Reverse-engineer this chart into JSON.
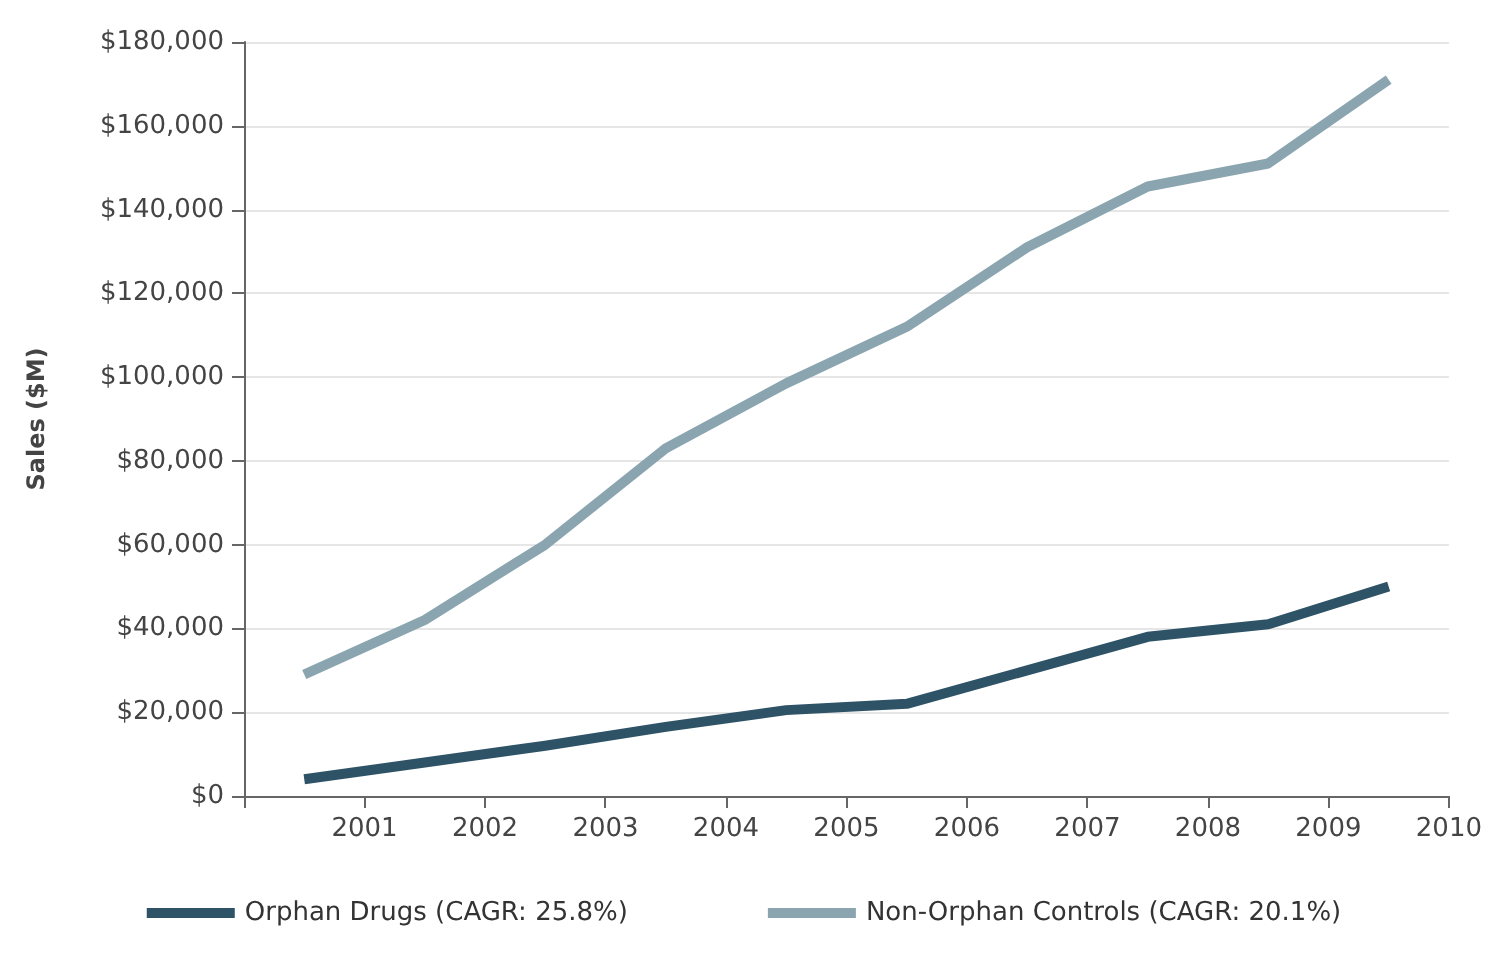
{
  "chart_data": {
    "type": "line",
    "ylabel": "Sales ($M)",
    "x": [
      2000.5,
      2001.5,
      2002.5,
      2003.5,
      2004.5,
      2005.5,
      2006.5,
      2007.5,
      2008.5,
      2009.5
    ],
    "series": [
      {
        "name": "Orphan Drugs (CAGR: 25.8%)",
        "color": "#2e5266",
        "values": [
          4000,
          8000,
          12000,
          16500,
          20500,
          22000,
          30000,
          38000,
          41000,
          50000
        ]
      },
      {
        "name": "Non-Orphan Controls (CAGR: 20.1%)",
        "color": "#8aa5b0",
        "values": [
          29000,
          42000,
          60000,
          83000,
          98500,
          112000,
          131000,
          145500,
          151000,
          171000
        ]
      }
    ],
    "xlim": [
      2000,
      2010
    ],
    "xticks": [
      {
        "value": 2000,
        "label": null
      },
      2001,
      2002,
      2003,
      2004,
      2005,
      2006,
      2007,
      2008,
      2009,
      2010
    ],
    "ylim": [
      0,
      180000
    ],
    "yticks": [
      {
        "value": 0,
        "label": "$0"
      },
      {
        "value": 20000,
        "label": "$20,000"
      },
      {
        "value": 40000,
        "label": "$40,000"
      },
      {
        "value": 60000,
        "label": "$60,000"
      },
      {
        "value": 80000,
        "label": "$80,000"
      },
      {
        "value": 100000,
        "label": "$100,000"
      },
      {
        "value": 120000,
        "label": "$120,000"
      },
      {
        "value": 140000,
        "label": "$140,000"
      },
      {
        "value": 160000,
        "label": "$160,000"
      },
      {
        "value": 180000,
        "label": "$180,000"
      }
    ],
    "grid": "y",
    "legend": "bottom",
    "marker": "none",
    "line_style": "solid"
  }
}
